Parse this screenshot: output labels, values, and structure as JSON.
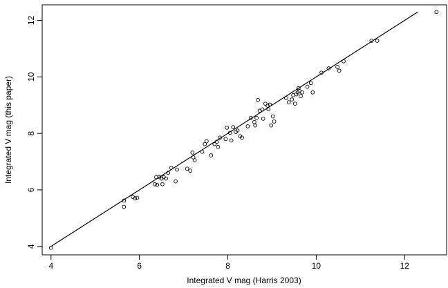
{
  "chart_data": {
    "type": "scatter",
    "title": "",
    "xlabel": "Integrated V mag (Harris 2003)",
    "ylabel": "Integrated V mag (this paper)",
    "xlim": [
      3.8,
      12.95
    ],
    "ylim": [
      3.7,
      12.55
    ],
    "xticks": [
      4,
      6,
      8,
      10,
      12
    ],
    "yticks": [
      4,
      6,
      8,
      10,
      12
    ],
    "grid": false,
    "marker": "open-circle",
    "fit_line": {
      "x": [
        4.0,
        12.3
      ],
      "y": [
        4.0,
        12.3
      ]
    },
    "points": [
      [
        4.0,
        3.95
      ],
      [
        5.65,
        5.62
      ],
      [
        5.65,
        5.4
      ],
      [
        5.85,
        5.75
      ],
      [
        5.9,
        5.7
      ],
      [
        5.95,
        5.72
      ],
      [
        6.35,
        6.2
      ],
      [
        6.38,
        6.45
      ],
      [
        6.4,
        6.18
      ],
      [
        6.45,
        6.45
      ],
      [
        6.5,
        6.4
      ],
      [
        6.52,
        6.2
      ],
      [
        6.55,
        6.45
      ],
      [
        6.6,
        6.4
      ],
      [
        6.65,
        6.6
      ],
      [
        6.72,
        6.78
      ],
      [
        6.82,
        6.3
      ],
      [
        6.85,
        6.72
      ],
      [
        7.08,
        6.75
      ],
      [
        7.15,
        6.68
      ],
      [
        7.2,
        7.32
      ],
      [
        7.22,
        7.15
      ],
      [
        7.25,
        7.05
      ],
      [
        7.42,
        7.35
      ],
      [
        7.48,
        7.62
      ],
      [
        7.52,
        7.72
      ],
      [
        7.62,
        7.22
      ],
      [
        7.7,
        7.62
      ],
      [
        7.75,
        7.7
      ],
      [
        7.78,
        7.52
      ],
      [
        7.82,
        7.85
      ],
      [
        7.95,
        7.8
      ],
      [
        7.98,
        8.2
      ],
      [
        8.05,
        8.02
      ],
      [
        8.08,
        7.75
      ],
      [
        8.12,
        8.22
      ],
      [
        8.18,
        8.05
      ],
      [
        8.22,
        8.1
      ],
      [
        8.28,
        7.9
      ],
      [
        8.32,
        7.85
      ],
      [
        8.45,
        8.25
      ],
      [
        8.52,
        8.55
      ],
      [
        8.6,
        8.4
      ],
      [
        8.62,
        8.28
      ],
      [
        8.65,
        8.55
      ],
      [
        8.68,
        9.18
      ],
      [
        8.72,
        8.8
      ],
      [
        8.78,
        8.85
      ],
      [
        8.8,
        8.52
      ],
      [
        8.85,
        9.05
      ],
      [
        8.9,
        8.98
      ],
      [
        8.92,
        8.85
      ],
      [
        8.95,
        9.02
      ],
      [
        8.98,
        8.28
      ],
      [
        9.02,
        8.6
      ],
      [
        9.05,
        8.42
      ],
      [
        9.32,
        9.25
      ],
      [
        9.38,
        9.1
      ],
      [
        9.45,
        9.2
      ],
      [
        9.48,
        9.35
      ],
      [
        9.52,
        9.05
      ],
      [
        9.55,
        9.38
      ],
      [
        9.58,
        9.45
      ],
      [
        9.6,
        9.6
      ],
      [
        9.62,
        9.5
      ],
      [
        9.65,
        9.32
      ],
      [
        9.68,
        9.45
      ],
      [
        9.8,
        9.65
      ],
      [
        9.88,
        9.78
      ],
      [
        9.92,
        9.45
      ],
      [
        10.12,
        10.15
      ],
      [
        10.28,
        10.3
      ],
      [
        10.48,
        10.35
      ],
      [
        10.52,
        10.22
      ],
      [
        10.62,
        10.55
      ],
      [
        11.25,
        11.28
      ],
      [
        11.38,
        11.28
      ],
      [
        12.72,
        12.3
      ]
    ]
  }
}
